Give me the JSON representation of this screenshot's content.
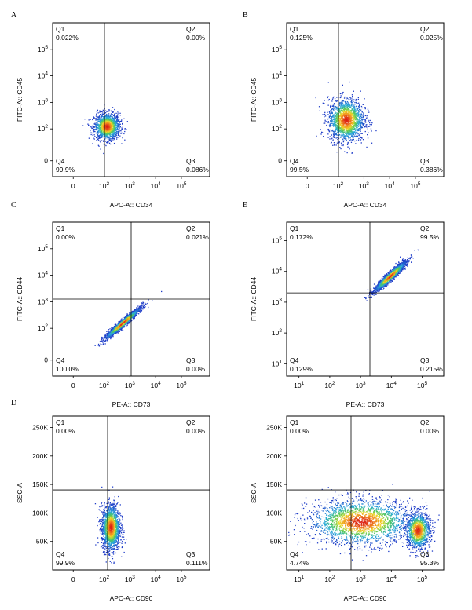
{
  "chart_data": [
    {
      "type": "scatter",
      "letter": "A",
      "xlabel": "APC-A:: CD34",
      "ylabel": "FITC-A:: CD45",
      "xticks": [
        {
          "m": "0",
          "e": ""
        },
        {
          "m": "10",
          "e": "2"
        },
        {
          "m": "10",
          "e": "3"
        },
        {
          "m": "10",
          "e": "4"
        },
        {
          "m": "10",
          "e": "5"
        }
      ],
      "yticks": [
        {
          "m": "0",
          "e": ""
        },
        {
          "m": "10",
          "e": "2"
        },
        {
          "m": "10",
          "e": "3"
        },
        {
          "m": "10",
          "e": "4"
        },
        {
          "m": "10",
          "e": "5"
        }
      ],
      "quadrants": {
        "Q1": "0.022%",
        "Q2": "0.00%",
        "Q3": "0.086%",
        "Q4": "99.9%"
      },
      "population": [
        {
          "cx": 1.6,
          "cy": 1.6,
          "sx": 0.25,
          "sy": 0.25,
          "n": 1400
        }
      ]
    },
    {
      "type": "scatter",
      "letter": "B",
      "xlabel": "APC-A:: CD34",
      "ylabel": "FITC-A:: CD45",
      "xticks": [
        {
          "m": "0",
          "e": ""
        },
        {
          "m": "10",
          "e": "2"
        },
        {
          "m": "10",
          "e": "3"
        },
        {
          "m": "10",
          "e": "4"
        },
        {
          "m": "10",
          "e": "5"
        }
      ],
      "yticks": [
        {
          "m": "0",
          "e": ""
        },
        {
          "m": "10",
          "e": "2"
        },
        {
          "m": "10",
          "e": "3"
        },
        {
          "m": "10",
          "e": "4"
        },
        {
          "m": "10",
          "e": "5"
        }
      ],
      "quadrants": {
        "Q1": "0.125%",
        "Q2": "0.025%",
        "Q3": "0.386%",
        "Q4": "99.5%"
      },
      "population": [
        {
          "cx": 1.8,
          "cy": 1.85,
          "sx": 0.35,
          "sy": 0.4,
          "n": 1600
        }
      ]
    },
    {
      "type": "scatter",
      "letter": "C",
      "xlabel": "PE-A:: CD73",
      "ylabel": "FITC-A:: CD44",
      "xticks": [
        {
          "m": "0",
          "e": ""
        },
        {
          "m": "10",
          "e": "2"
        },
        {
          "m": "10",
          "e": "3"
        },
        {
          "m": "10",
          "e": "4"
        },
        {
          "m": "10",
          "e": "5"
        }
      ],
      "yticks": [
        {
          "m": "0",
          "e": ""
        },
        {
          "m": "10",
          "e": "2"
        },
        {
          "m": "10",
          "e": "3"
        },
        {
          "m": "10",
          "e": "4"
        },
        {
          "m": "10",
          "e": "5"
        }
      ],
      "quadrants": {
        "Q1": "0.00%",
        "Q2": "0.021%",
        "Q3": "0.00%",
        "Q4": "100.0%"
      },
      "population": [
        {
          "cx": 2.2,
          "cy": 1.7,
          "sx": 0.45,
          "sy": 0.12,
          "n": 1600,
          "rot": -0.7
        }
      ]
    },
    {
      "type": "scatter",
      "letter": "E",
      "xlabel": "PE-A:: CD73",
      "ylabel": "FITC-A:: CD44",
      "xticks": [
        {
          "m": "10",
          "e": "1"
        },
        {
          "m": "10",
          "e": "2"
        },
        {
          "m": "10",
          "e": "3"
        },
        {
          "m": "10",
          "e": "4"
        },
        {
          "m": "10",
          "e": "5"
        }
      ],
      "yticks": [
        {
          "m": "10",
          "e": "1"
        },
        {
          "m": "10",
          "e": "2"
        },
        {
          "m": "10",
          "e": "3"
        },
        {
          "m": "10",
          "e": "4"
        },
        {
          "m": "10",
          "e": "5"
        }
      ],
      "quadrants": {
        "Q1": "0.172%",
        "Q2": "99.5%",
        "Q3": "0.215%",
        "Q4": "0.129%"
      },
      "population": [
        {
          "cx": 3.85,
          "cy": 3.75,
          "sx": 0.35,
          "sy": 0.12,
          "n": 1800,
          "rot": -0.75
        }
      ]
    },
    {
      "type": "scatter",
      "letter": "D",
      "xlabel": "APC-A:: CD90",
      "ylabel": "SSC-A",
      "xticks": [
        {
          "m": "0",
          "e": ""
        },
        {
          "m": "10",
          "e": "2"
        },
        {
          "m": "10",
          "e": "3"
        },
        {
          "m": "10",
          "e": "4"
        },
        {
          "m": "10",
          "e": "5"
        }
      ],
      "yticks": [
        {
          "m": "50K",
          "e": ""
        },
        {
          "m": "100K",
          "e": ""
        },
        {
          "m": "150K",
          "e": ""
        },
        {
          "m": "200K",
          "e": ""
        },
        {
          "m": "250K",
          "e": ""
        }
      ],
      "quadrants": {
        "Q1": "0.00%",
        "Q2": "0.00%",
        "Q3": "0.111%",
        "Q4": "99.9%"
      },
      "population": [
        {
          "cx": 1.75,
          "cy": 75,
          "sx": 0.18,
          "sy": 20,
          "n": 1700
        }
      ]
    },
    {
      "type": "scatter",
      "letter": "",
      "xlabel": "APC-A:: CD90",
      "ylabel": "SSC-A",
      "xticks": [
        {
          "m": "10",
          "e": "1"
        },
        {
          "m": "10",
          "e": "2"
        },
        {
          "m": "10",
          "e": "3"
        },
        {
          "m": "10",
          "e": "4"
        },
        {
          "m": "10",
          "e": "5"
        }
      ],
      "yticks": [
        {
          "m": "50K",
          "e": ""
        },
        {
          "m": "100K",
          "e": ""
        },
        {
          "m": "150K",
          "e": ""
        },
        {
          "m": "200K",
          "e": ""
        },
        {
          "m": "250K",
          "e": ""
        }
      ],
      "quadrants": {
        "Q1": "0.00%",
        "Q2": "0.00%",
        "Q3": "95.3%",
        "Q4": "4.74%"
      },
      "population": [
        {
          "cx": 2.9,
          "cy": 85,
          "sx": 0.85,
          "sy": 20,
          "n": 2200
        },
        {
          "cx": 4.75,
          "cy": 70,
          "sx": 0.2,
          "sy": 16,
          "n": 1100
        }
      ]
    }
  ]
}
